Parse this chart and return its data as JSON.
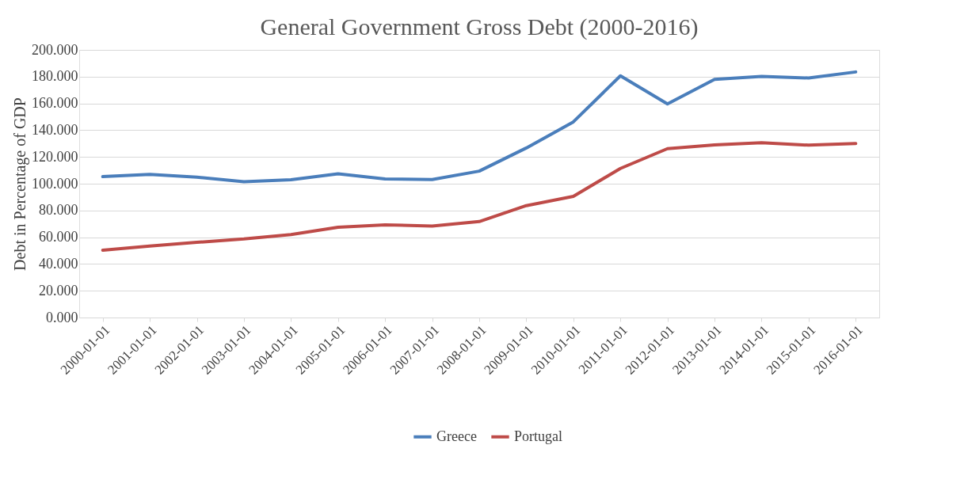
{
  "chart_data": {
    "type": "line",
    "title": "General Government Gross Debt (2000-2016)",
    "ylabel": "Debt in Percentage of GDP",
    "categories": [
      "2000-01-01",
      "2001-01-01",
      "2002-01-01",
      "2003-01-01",
      "2004-01-01",
      "2005-01-01",
      "2006-01-01",
      "2007-01-01",
      "2008-01-01",
      "2009-01-01",
      "2010-01-01",
      "2011-01-01",
      "2012-01-01",
      "2013-01-01",
      "2014-01-01",
      "2015-01-01",
      "2016-01-01"
    ],
    "series": [
      {
        "name": "Greece",
        "color": "#4a7ebb",
        "values": [
          105.3,
          107.0,
          104.9,
          101.5,
          102.9,
          107.4,
          103.6,
          103.1,
          109.4,
          126.7,
          146.2,
          180.6,
          159.6,
          177.9,
          180.2,
          179.0,
          183.5
        ]
      },
      {
        "name": "Portugal",
        "color": "#be4b48",
        "values": [
          50.3,
          53.4,
          56.2,
          58.7,
          62.0,
          67.4,
          69.2,
          68.4,
          71.7,
          83.6,
          90.5,
          111.4,
          126.2,
          129.0,
          130.6,
          128.8,
          130.1
        ]
      }
    ],
    "ylim": [
      0,
      200
    ],
    "yticks": [
      {
        "value": 0,
        "label": "0.000"
      },
      {
        "value": 20,
        "label": "20.000"
      },
      {
        "value": 40,
        "label": "40.000"
      },
      {
        "value": 60,
        "label": "60.000"
      },
      {
        "value": 80,
        "label": "80.000"
      },
      {
        "value": 100,
        "label": "100.000"
      },
      {
        "value": 120,
        "label": "120.000"
      },
      {
        "value": 140,
        "label": "140.000"
      },
      {
        "value": 160,
        "label": "160.000"
      },
      {
        "value": 180,
        "label": "180.000"
      },
      {
        "value": 200,
        "label": "200.000"
      }
    ],
    "grid": "y",
    "legend": "bottom",
    "marker": "none",
    "line_style": "solid"
  }
}
